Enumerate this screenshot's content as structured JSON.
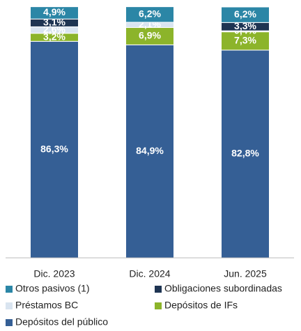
{
  "chart_data": {
    "type": "bar",
    "stacked": true,
    "categories": [
      "Dic. 2023",
      "Dic. 2024",
      "Jun. 2025"
    ],
    "ylim": [
      0,
      100
    ],
    "series": [
      {
        "name": "Depósitos del público",
        "color": "#355f95",
        "values": [
          86.3,
          84.9,
          82.8
        ],
        "value_labels": [
          "86,3%",
          "84,9%",
          "82,8%"
        ]
      },
      {
        "name": "Depósitos de IFs",
        "color": "#8cb42a",
        "values": [
          3.2,
          6.9,
          7.3
        ],
        "value_labels": [
          "3,2%",
          "6,9%",
          "7,3%"
        ]
      },
      {
        "name": "Préstamos BC",
        "color": "#d9e4f0",
        "values": [
          2.6,
          2.1,
          0.4
        ],
        "value_labels": [
          "2,6%",
          "2,1%",
          "0,4%"
        ]
      },
      {
        "name": "Obligaciones subordinadas",
        "color": "#1e3452",
        "values": [
          3.1,
          null,
          3.3
        ],
        "value_labels": [
          "3,1%",
          null,
          "3,3%"
        ]
      },
      {
        "name": "Otros pasivos (1)",
        "color": "#2b86a6",
        "values": [
          4.9,
          6.2,
          6.2
        ],
        "value_labels": [
          "4,9%",
          "6,2%",
          "6,2%"
        ]
      }
    ]
  }
}
